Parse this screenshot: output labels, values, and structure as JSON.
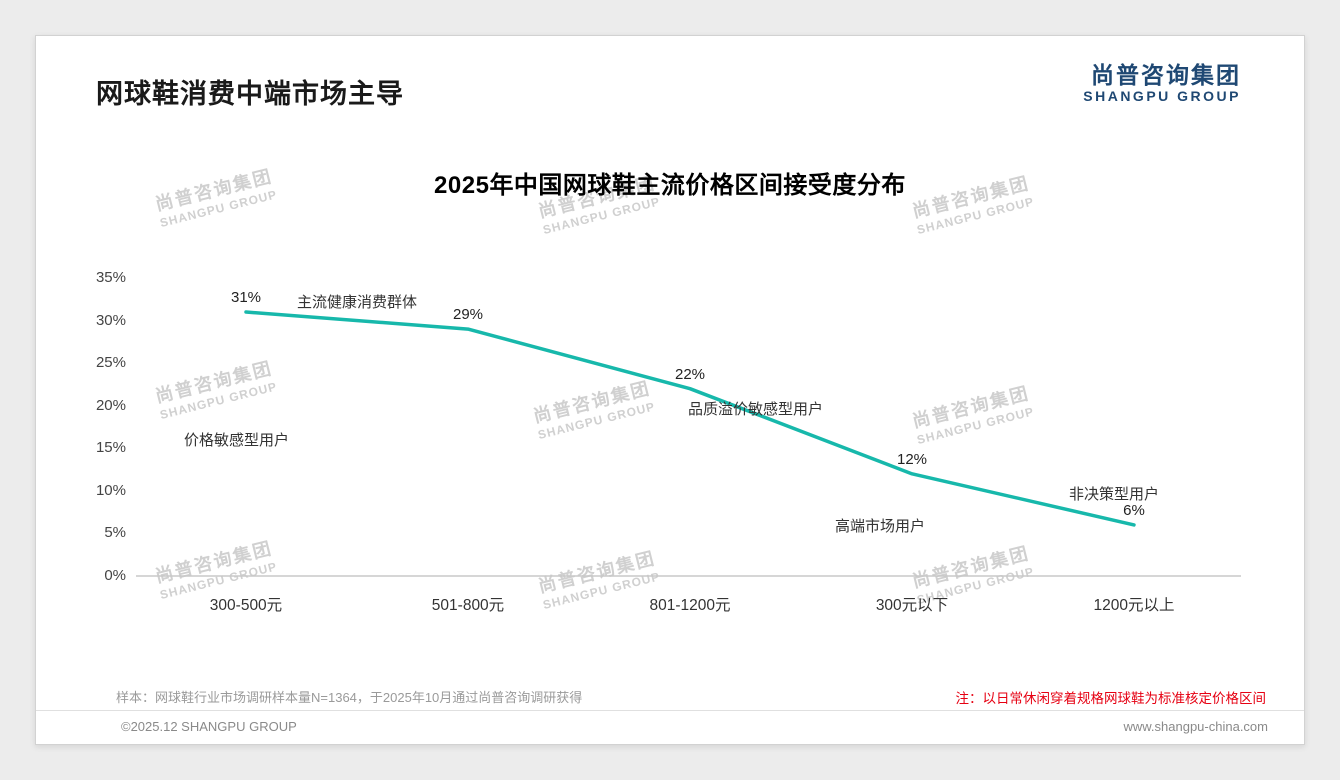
{
  "page": {
    "title": "网球鞋消费中端市场主导",
    "logo": {
      "cn": "尚普咨询集团",
      "en": "SHANGPU GROUP"
    },
    "watermark": {
      "line1": "尚普咨询集团",
      "line2": "SHANGPU GROUP"
    },
    "footer": {
      "sample_note": "样本：网球鞋行业市场调研样本量N=1364，于2025年10月通过尚普咨询调研获得",
      "price_note": "注：以日常休闲穿着规格网球鞋为标准核定价格区间",
      "copyright": "©2025.12 SHANGPU GROUP",
      "website": "www.shangpu-china.com"
    }
  },
  "chart_data": {
    "type": "line",
    "title": "2025年中国网球鞋主流价格区间接受度分布",
    "categories": [
      "300-500元",
      "501-800元",
      "801-1200元",
      "300元以下",
      "1200元以上"
    ],
    "values": [
      31,
      29,
      22,
      12,
      6
    ],
    "data_labels": [
      "31%",
      "29%",
      "22%",
      "12%",
      "6%"
    ],
    "unit": "%",
    "ylim": [
      0,
      35
    ],
    "yticks": [
      0,
      5,
      10,
      15,
      20,
      25,
      30,
      35
    ],
    "ytick_labels": [
      "0%",
      "5%",
      "10%",
      "15%",
      "20%",
      "25%",
      "30%",
      "35%"
    ],
    "line_color": "#17b8ab",
    "axis_color": "#c8c8c8",
    "grid": false,
    "legend": "none",
    "annotations": [
      {
        "text": "主流健康消费群体"
      },
      {
        "text": "价格敏感型用户"
      },
      {
        "text": "品质溢价敏感型用户"
      },
      {
        "text": "高端市场用户"
      },
      {
        "text": "非决策型用户"
      }
    ]
  }
}
